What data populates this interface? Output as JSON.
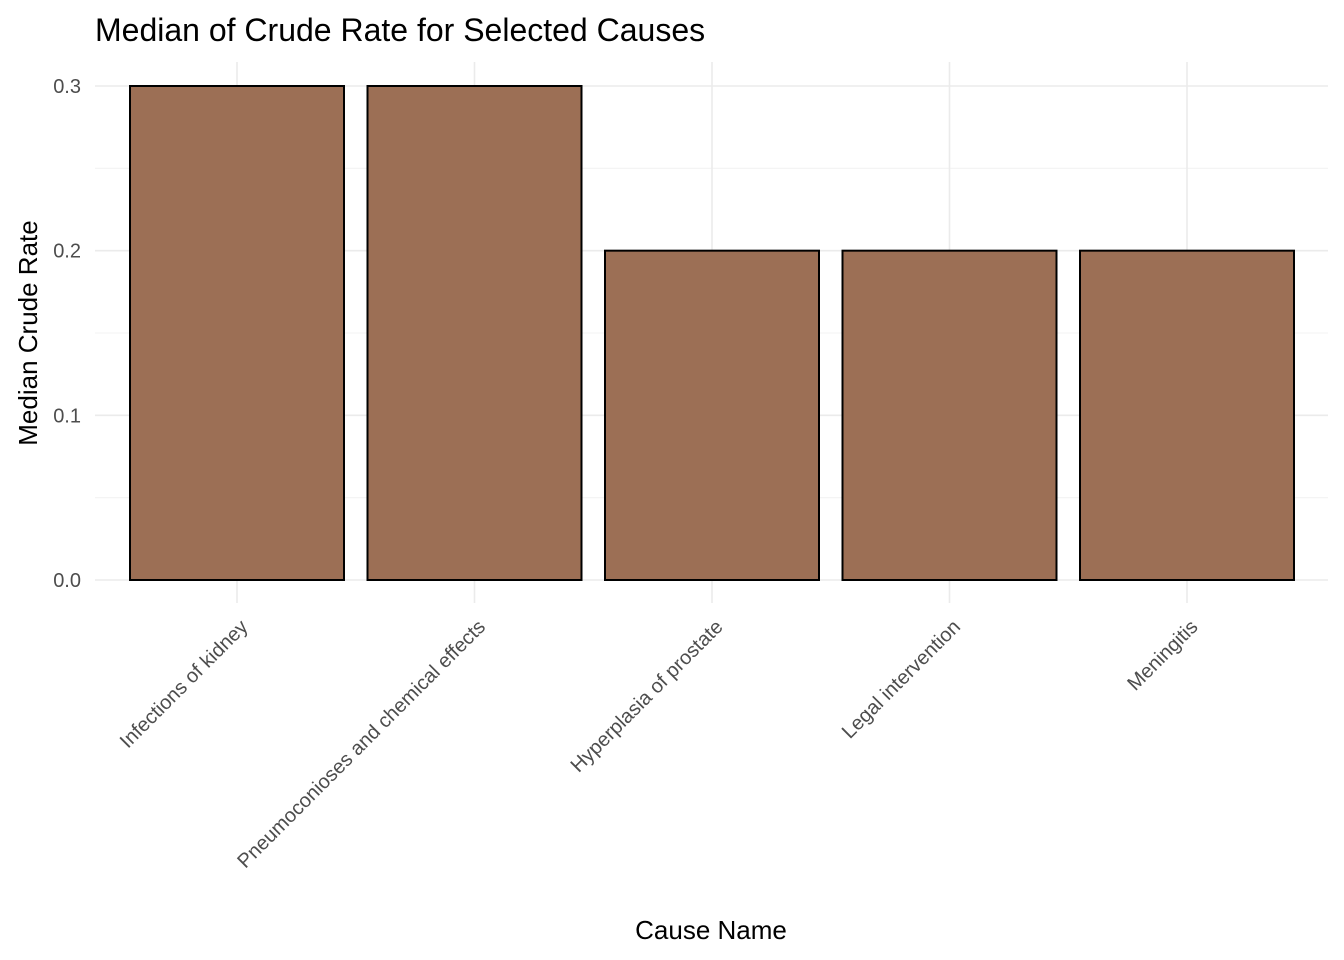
{
  "chart_data": {
    "type": "bar",
    "title": "Median of Crude Rate for Selected Causes",
    "xlabel": "Cause Name",
    "ylabel": "Median Crude Rate",
    "categories": [
      "Infections of kidney",
      "Pneumoconioses and chemical effects",
      "Hyperplasia of prostate",
      "Legal intervention",
      "Meningitis"
    ],
    "values": [
      0.3,
      0.3,
      0.2,
      0.2,
      0.2
    ],
    "ylim": [
      0,
      0.3
    ],
    "yticks": [
      "0.0",
      "0.1",
      "0.2",
      "0.3"
    ],
    "grid": true,
    "legend": "none",
    "bar_color": "#9C6F55",
    "bar_outline": "#000000"
  }
}
